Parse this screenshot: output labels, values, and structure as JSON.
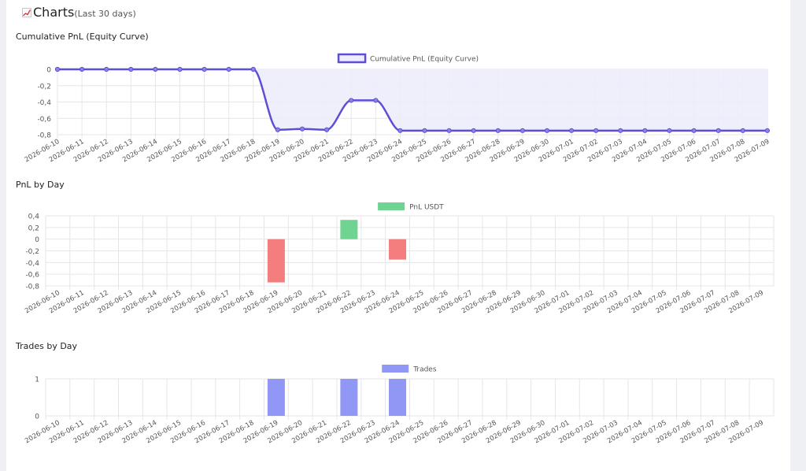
{
  "header": {
    "title": "Charts",
    "subtitle": "(Last 30 days)",
    "icon": "chart-increasing-icon"
  },
  "dates": [
    "2026-06-10",
    "2026-06-11",
    "2026-06-12",
    "2026-06-13",
    "2026-06-14",
    "2026-06-15",
    "2026-06-16",
    "2026-06-17",
    "2026-06-18",
    "2026-06-19",
    "2026-06-20",
    "2026-06-21",
    "2026-06-22",
    "2026-06-23",
    "2026-06-24",
    "2026-06-25",
    "2026-06-26",
    "2026-06-27",
    "2026-06-28",
    "2026-06-29",
    "2026-06-30",
    "2026-07-01",
    "2026-07-02",
    "2026-07-03",
    "2026-07-04",
    "2026-07-05",
    "2026-07-06",
    "2026-07-07",
    "2026-07-08",
    "2026-07-09"
  ],
  "chart_data": [
    {
      "id": "equity",
      "type": "line",
      "title": "Cumulative PnL (Equity Curve)",
      "legend": "Cumulative PnL (Equity Curve)",
      "legend_position": "top",
      "ylim": [
        -0.8,
        0
      ],
      "yticks": [
        "0",
        "-0,2",
        "-0,4",
        "-0,6",
        "-0,8"
      ],
      "values": [
        0,
        0,
        0,
        0,
        0,
        0,
        0,
        0,
        0,
        -0.74,
        -0.73,
        -0.74,
        -0.38,
        -0.38,
        -0.75,
        -0.75,
        -0.75,
        -0.75,
        -0.75,
        -0.75,
        -0.75,
        -0.75,
        -0.75,
        -0.75,
        -0.75,
        -0.75,
        -0.75,
        -0.75,
        -0.75,
        -0.75
      ],
      "line_color": "#5c4fd6",
      "fill_color": "#ececfb",
      "grid": true
    },
    {
      "id": "pnl",
      "type": "bar",
      "title": "PnL by Day",
      "legend": "PnL USDT",
      "legend_position": "top",
      "ylim": [
        -0.8,
        0.4
      ],
      "yticks": [
        "0,4",
        "0,2",
        "0",
        "-0,2",
        "-0,4",
        "-0,6",
        "-0,8"
      ],
      "values": [
        0,
        0,
        0,
        0,
        0,
        0,
        0,
        0,
        0,
        -0.74,
        0,
        0,
        0.33,
        0,
        -0.35,
        0,
        0,
        0,
        0,
        0,
        0,
        0,
        0,
        0,
        0,
        0,
        0,
        0,
        0,
        0
      ],
      "positive_color": "#6fd391",
      "negative_color": "#f47d7d",
      "grid": true
    },
    {
      "id": "trades",
      "type": "bar",
      "title": "Trades by Day",
      "legend": "Trades",
      "legend_position": "top",
      "ylim": [
        0,
        1
      ],
      "yticks": [
        "1",
        "0"
      ],
      "values": [
        0,
        0,
        0,
        0,
        0,
        0,
        0,
        0,
        0,
        1,
        0,
        0,
        1,
        0,
        1,
        0,
        0,
        0,
        0,
        0,
        0,
        0,
        0,
        0,
        0,
        0,
        0,
        0,
        0,
        0
      ],
      "bar_color": "#9197f4",
      "grid": true
    }
  ]
}
